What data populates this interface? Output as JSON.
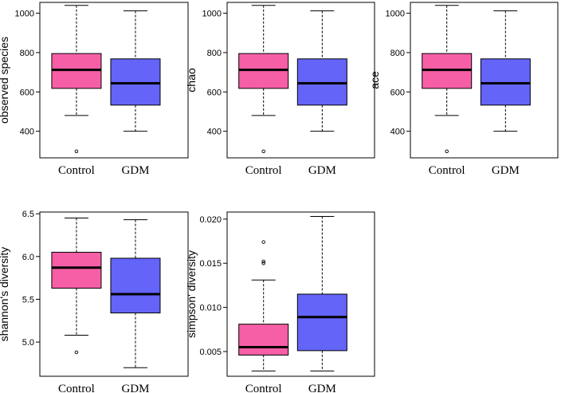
{
  "colors": {
    "control_fill": "#f65fa6",
    "gdm_fill": "#6464f9",
    "stroke": "#000000",
    "background": "#ffffff"
  },
  "chart_data": [
    {
      "type": "box",
      "ylabel": "observed species",
      "categories": [
        "Control",
        "GDM"
      ],
      "yticks": [
        400,
        600,
        800,
        1000
      ],
      "tick_labels": [
        "400",
        "600",
        "800",
        "1000"
      ],
      "ylim": [
        265,
        1055
      ],
      "boxes": [
        {
          "name": "Control",
          "whisker_low": 480,
          "q1": 618,
          "median": 712,
          "q3": 795,
          "whisker_high": 1040,
          "outliers": [
            298
          ]
        },
        {
          "name": "GDM",
          "whisker_low": 400,
          "q1": 533,
          "median": 644,
          "q3": 768,
          "whisker_high": 1012,
          "outliers": []
        }
      ]
    },
    {
      "type": "box",
      "ylabel": "chao",
      "categories": [
        "Control",
        "GDM"
      ],
      "yticks": [
        400,
        600,
        800,
        1000
      ],
      "tick_labels": [
        "400",
        "600",
        "800",
        "1000"
      ],
      "ylim": [
        265,
        1055
      ],
      "boxes": [
        {
          "name": "Control",
          "whisker_low": 480,
          "q1": 618,
          "median": 712,
          "q3": 795,
          "whisker_high": 1040,
          "outliers": [
            298
          ]
        },
        {
          "name": "GDM",
          "whisker_low": 400,
          "q1": 533,
          "median": 644,
          "q3": 768,
          "whisker_high": 1012,
          "outliers": []
        }
      ]
    },
    {
      "type": "box",
      "ylabel": "ace",
      "categories": [
        "Control",
        "GDM"
      ],
      "yticks": [
        400,
        600,
        800,
        1000
      ],
      "tick_labels": [
        "400",
        "600",
        "800",
        "1000"
      ],
      "ylim": [
        265,
        1055
      ],
      "boxes": [
        {
          "name": "Control",
          "whisker_low": 480,
          "q1": 618,
          "median": 712,
          "q3": 795,
          "whisker_high": 1040,
          "outliers": [
            298
          ]
        },
        {
          "name": "GDM",
          "whisker_low": 400,
          "q1": 533,
          "median": 644,
          "q3": 768,
          "whisker_high": 1012,
          "outliers": []
        }
      ]
    },
    {
      "type": "box",
      "ylabel": "shannon's diversity",
      "categories": [
        "Control",
        "GDM"
      ],
      "yticks": [
        5.0,
        5.5,
        6.0,
        6.5
      ],
      "tick_labels": [
        "5.0",
        "5.5",
        "6.0",
        "6.5"
      ],
      "ylim": [
        4.6,
        6.52
      ],
      "boxes": [
        {
          "name": "Control",
          "whisker_low": 5.08,
          "q1": 5.63,
          "median": 5.87,
          "q3": 6.05,
          "whisker_high": 6.45,
          "outliers": [
            4.88
          ]
        },
        {
          "name": "GDM",
          "whisker_low": 4.7,
          "q1": 5.34,
          "median": 5.56,
          "q3": 5.98,
          "whisker_high": 6.43,
          "outliers": []
        }
      ]
    },
    {
      "type": "box",
      "ylabel": "simpson' diversity",
      "categories": [
        "Control",
        "GDM"
      ],
      "yticks": [
        0.005,
        0.01,
        0.015,
        0.02
      ],
      "tick_labels": [
        "0.005",
        "0.010",
        "0.015",
        "0.020"
      ],
      "ylim": [
        0.0022,
        0.0208
      ],
      "boxes": [
        {
          "name": "Control",
          "whisker_low": 0.0028,
          "q1": 0.0046,
          "median": 0.0055,
          "q3": 0.0081,
          "whisker_high": 0.0131,
          "outliers": [
            0.015,
            0.0152,
            0.0174
          ]
        },
        {
          "name": "GDM",
          "whisker_low": 0.0028,
          "q1": 0.0051,
          "median": 0.0089,
          "q3": 0.0115,
          "whisker_high": 0.0203,
          "outliers": []
        }
      ]
    }
  ]
}
